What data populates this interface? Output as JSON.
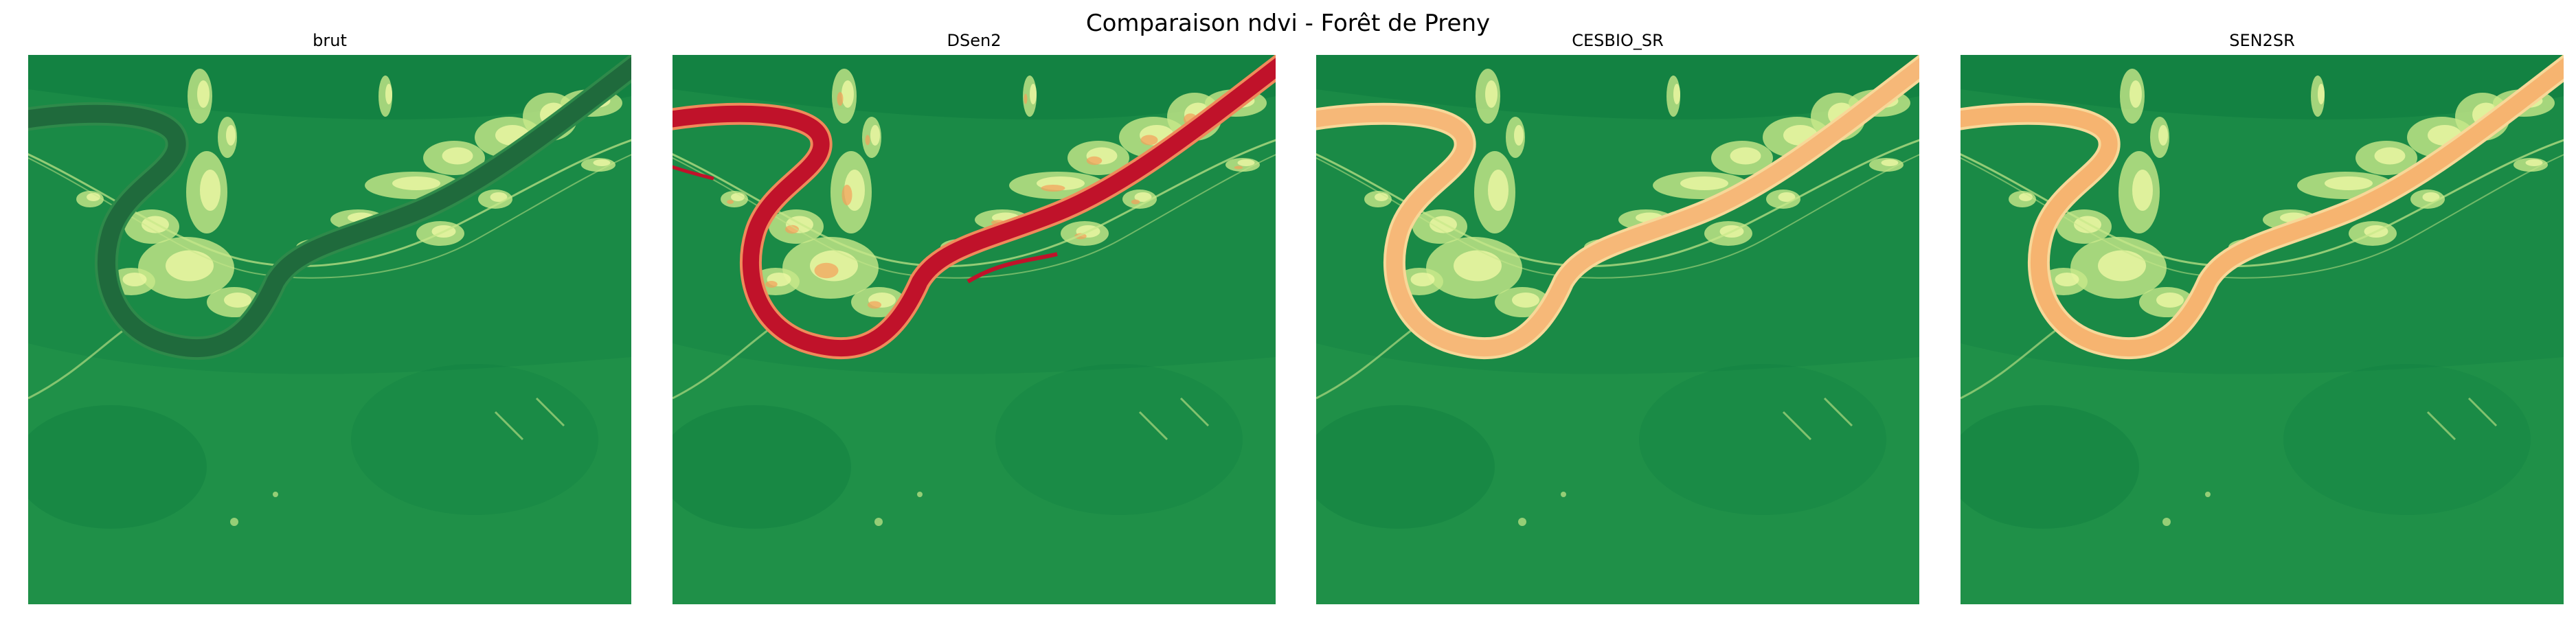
{
  "figure": {
    "title": "Comparaison ndvi - Forêt de Preny"
  },
  "panels": [
    {
      "label": "brut",
      "river_color": "#1f6a3c",
      "river_edge": "#2e8a4a"
    },
    {
      "label": "DSen2",
      "river_color": "#c0122a",
      "river_edge": "#f08a5a"
    },
    {
      "label": "CESBIO_SR",
      "river_color": "#f6b878",
      "river_edge": "#f7d898"
    },
    {
      "label": "SEN2SR",
      "river_color": "#f6b470",
      "river_edge": "#f7d898"
    }
  ],
  "colors": {
    "forest_dark": "#0b7a3e",
    "forest": "#1a8a46",
    "field": "#2a9a4e",
    "urban_light": "#c8e88a",
    "urban_yellow": "#eef7a4"
  }
}
